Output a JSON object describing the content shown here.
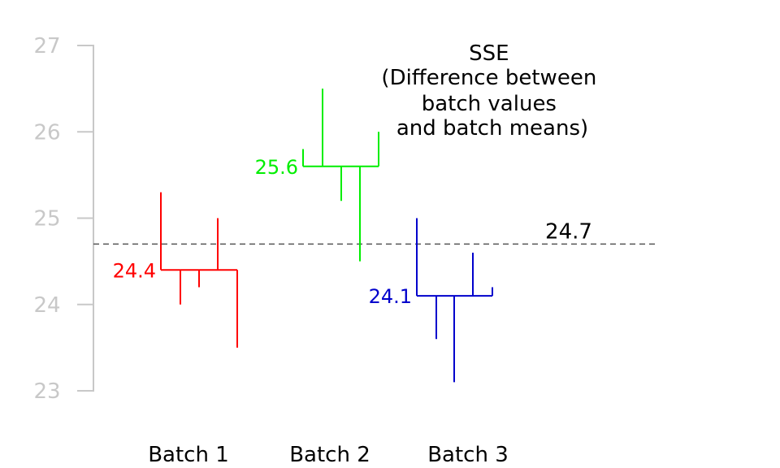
{
  "chart_data": {
    "type": "scatter",
    "title": "",
    "xlabel": "",
    "ylabel": "",
    "ylim": [
      23,
      27
    ],
    "yticks": [
      23,
      24,
      25,
      26,
      27
    ],
    "yticks_text": [
      "23",
      "24",
      "25",
      "26",
      "27"
    ],
    "grand_mean": 24.7,
    "grand_mean_label": "24.7",
    "annotation": [
      "SSE",
      "(Difference between",
      "batch values",
      "and batch means)"
    ],
    "batches": [
      {
        "name": "Batch 1",
        "color": "#ff0000",
        "mean": 24.4,
        "mean_label": "24.4",
        "values": [
          25.3,
          24.0,
          24.2,
          25.0,
          23.5
        ]
      },
      {
        "name": "Batch 2",
        "color": "#00ee00",
        "mean": 25.6,
        "mean_label": "25.6",
        "values": [
          25.8,
          26.5,
          25.2,
          24.5,
          26.0
        ]
      },
      {
        "name": "Batch 3",
        "color": "#0000cc",
        "mean": 24.1,
        "mean_label": "24.1",
        "values": [
          25.0,
          23.6,
          23.1,
          24.6,
          24.2
        ]
      }
    ]
  }
}
